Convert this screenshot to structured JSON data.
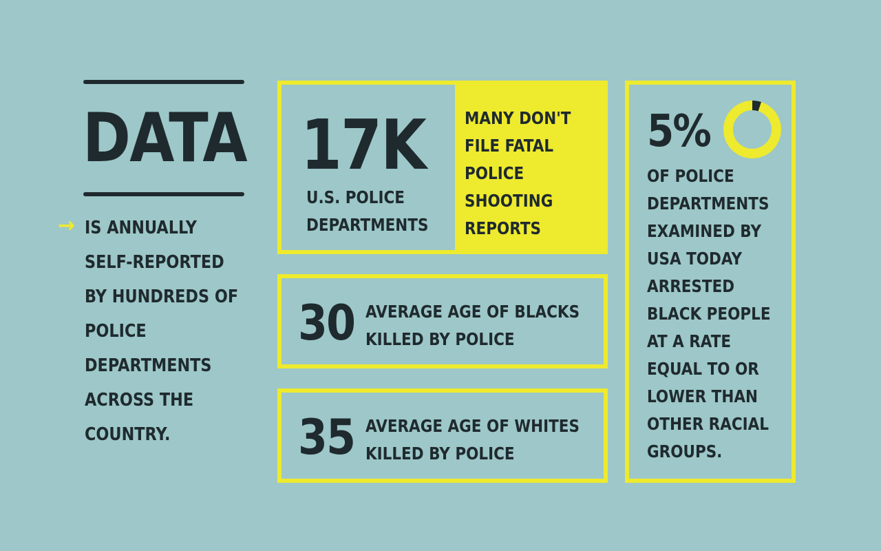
{
  "left": {
    "title": "DATA",
    "arrow": "→",
    "lines": [
      "IS ANNUALLY",
      "SELF-REPORTED",
      "BY HUNDREDS OF",
      "POLICE",
      "DEPARTMENTS",
      "ACROSS THE",
      "COUNTRY."
    ]
  },
  "card_17k": {
    "number": "17K",
    "label_lines": [
      "U.S. POLICE",
      "DEPARTMENTS"
    ],
    "side_lines": [
      "MANY DON'T",
      "FILE FATAL",
      "POLICE",
      "SHOOTING",
      "REPORTS"
    ]
  },
  "card_30": {
    "number": "30",
    "label_lines": [
      "AVERAGE AGE OF BLACKS",
      "KILLED BY POLICE"
    ]
  },
  "card_35": {
    "number": "35",
    "label_lines": [
      "AVERAGE AGE OF WHITES",
      "KILLED BY POLICE"
    ]
  },
  "card_5": {
    "number": "5%",
    "percent": 5,
    "lines": [
      "OF POLICE",
      "DEPARTMENTS",
      "EXAMINED BY",
      "USA TODAY",
      "ARRESTED",
      "BLACK PEOPLE",
      "AT A RATE",
      "EQUAL TO OR",
      "LOWER THAN",
      "OTHER RACIAL",
      "GROUPS."
    ]
  },
  "colors": {
    "background": "#9dc7c8",
    "accent": "#eeea2e",
    "text": "#1f2a2e"
  }
}
